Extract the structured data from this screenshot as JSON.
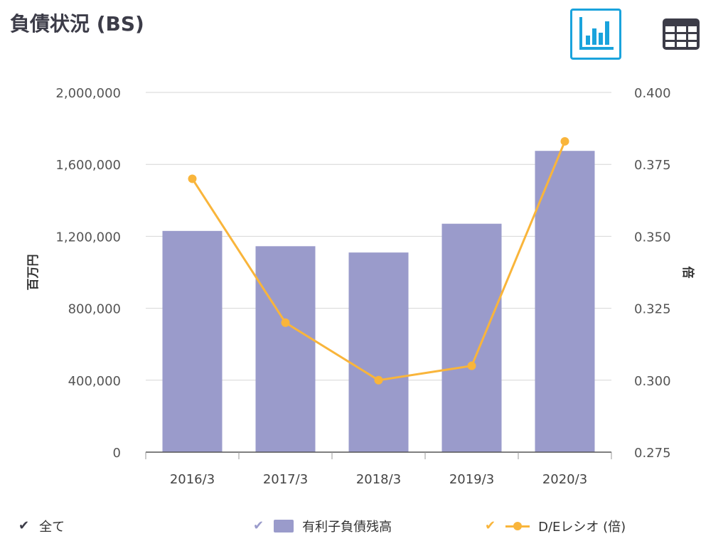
{
  "header": {
    "title": "負債状況 (BS)",
    "chart_view_icon": "bar-chart-icon",
    "table_view_icon": "table-grid-icon",
    "accent_color": "#1aa3dc"
  },
  "chart_data": {
    "type": "bar",
    "categories": [
      "2016/3",
      "2017/3",
      "2018/3",
      "2019/3",
      "2020/3"
    ],
    "series": [
      {
        "name": "有利子負債残高",
        "type": "bar",
        "axis": "left",
        "color": "#9a9bcb",
        "values": [
          1230000,
          1145000,
          1110000,
          1270000,
          1675000
        ]
      },
      {
        "name": "D/Eレシオ (倍)",
        "type": "line",
        "axis": "right",
        "color": "#f9b53b",
        "values": [
          0.37,
          0.32,
          0.3,
          0.305,
          0.383
        ]
      }
    ],
    "y_left": {
      "label": "百万円",
      "min": 0,
      "max": 2000000,
      "ticks": [
        "0",
        "400,000",
        "800,000",
        "1,200,000",
        "1,600,000",
        "2,000,000"
      ]
    },
    "y_right": {
      "label": "倍",
      "min": 0.275,
      "max": 0.4,
      "ticks": [
        "0.275",
        "0.300",
        "0.325",
        "0.350",
        "0.375",
        "0.400"
      ]
    },
    "grid": true,
    "legend_position": "bottom"
  },
  "legend": {
    "all_label": "全て",
    "all_color": "#3c3c48",
    "items": [
      {
        "label": "有利子負債残高",
        "color": "#9a9bcb"
      },
      {
        "label": "D/Eレシオ (倍)",
        "color": "#f9b53b"
      }
    ]
  }
}
